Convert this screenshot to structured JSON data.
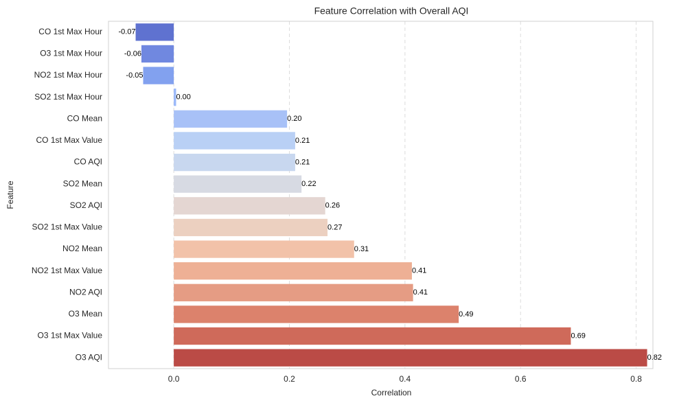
{
  "chart_data": {
    "type": "barh",
    "title": "Feature Correlation with Overall AQI",
    "x_label": "Correlation",
    "y_label": "Feature",
    "categories": [
      "CO 1st Max Hour",
      "O3 1st Max Hour",
      "NO2 1st Max Hour",
      "SO2 1st Max Hour",
      "CO Mean",
      "CO 1st Max Value",
      "CO AQI",
      "SO2 Mean",
      "SO2 AQI",
      "SO2 1st Max Value",
      "NO2 Mean",
      "NO2 1st Max Value",
      "NO2 AQI",
      "O3 Mean",
      "O3 1st Max Value",
      "O3 AQI"
    ],
    "values": [
      -0.066,
      -0.056,
      -0.053,
      0.004,
      0.196,
      0.21,
      0.21,
      0.221,
      0.262,
      0.266,
      0.312,
      0.412,
      0.414,
      0.493,
      0.687,
      0.819
    ],
    "value_labels": [
      "-0.07",
      "-0.06",
      "-0.05",
      "0.00",
      "0.20",
      "0.21",
      "0.21",
      "0.22",
      "0.26",
      "0.27",
      "0.31",
      "0.41",
      "0.41",
      "0.49",
      "0.69",
      "0.82"
    ],
    "colors": [
      "#5f72d0",
      "#7088e0",
      "#82a1ef",
      "#9ab8fa",
      "#a8c1f7",
      "#b9d0f5",
      "#c8d7ef",
      "#d7dae3",
      "#e4d6d2",
      "#ecd0c0",
      "#f2c2a9",
      "#eeb095",
      "#e59c84",
      "#dc826c",
      "#cf6a5a",
      "#bb4b46"
    ],
    "xlim": [
      -0.113,
      0.829
    ],
    "xticks": [
      {
        "value": 0,
        "label": "0.0"
      },
      0.2,
      0.4,
      0.6,
      0.8
    ],
    "grid": true
  }
}
